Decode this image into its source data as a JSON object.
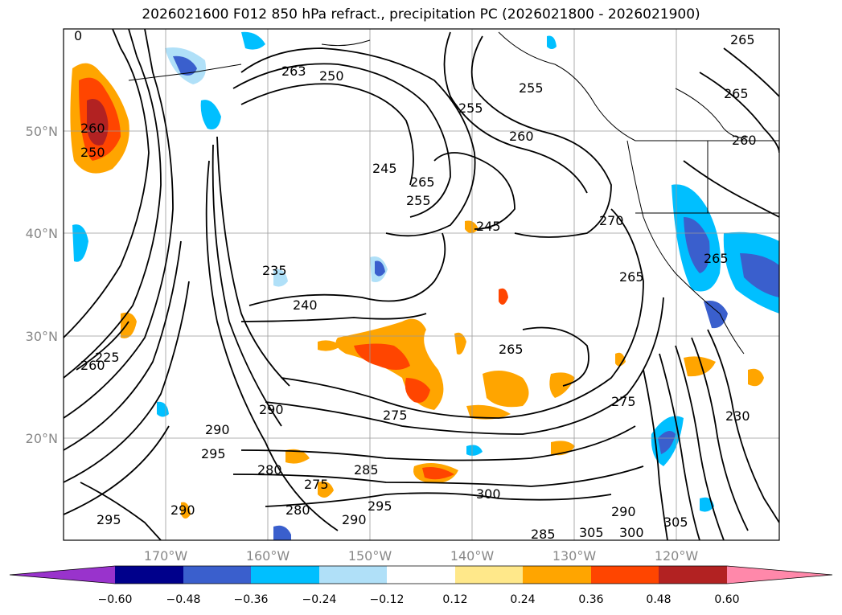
{
  "title": "2026021600 F012 850 hPa refract., precipitation PC (2026021800 - 2026021900)",
  "map": {
    "lat_labels": [
      "50°N",
      "40°N",
      "30°N",
      "20°N"
    ],
    "lon_labels": [
      "170°W",
      "160°W",
      "150°W",
      "140°W",
      "130°W",
      "120°W"
    ],
    "contour_labels": [
      "0",
      "263",
      "250",
      "255",
      "260",
      "255",
      "265",
      "265",
      "260",
      "245",
      "255",
      "265",
      "245",
      "270",
      "265",
      "265",
      "235",
      "240",
      "265",
      "275",
      "275",
      "260",
      "225",
      "290",
      "290",
      "295",
      "280",
      "285",
      "275",
      "295",
      "280",
      "290",
      "300",
      "290",
      "285",
      "305",
      "300",
      "305",
      "230",
      "295",
      "290",
      "250",
      "260"
    ]
  },
  "colorbar": {
    "ticks": [
      "−0.60",
      "−0.48",
      "−0.36",
      "−0.24",
      "−0.12",
      "0.12",
      "0.24",
      "0.36",
      "0.48",
      "0.60"
    ],
    "colors": [
      "#9933cc",
      "#00008b",
      "#3a5fcd",
      "#00bfff",
      "#b0e0f8",
      "#ffffff",
      "#ffe88a",
      "#ffa500",
      "#ff4500",
      "#b22222",
      "#ff88aa"
    ]
  }
}
